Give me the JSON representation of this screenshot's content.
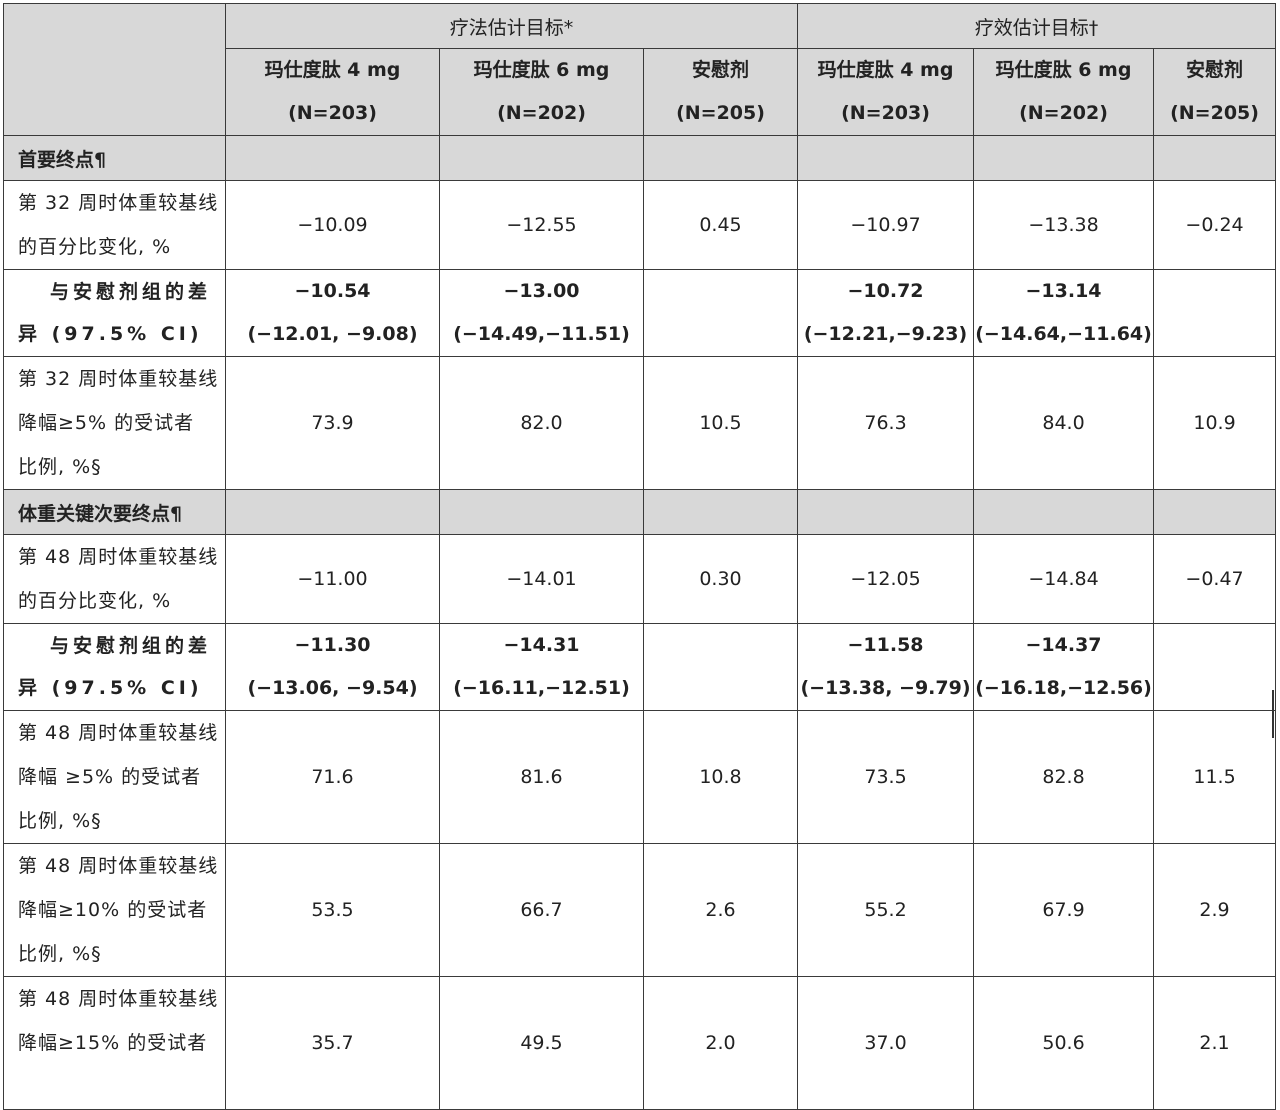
{
  "header": {
    "group1": "疗法估计目标*",
    "group2": "疗效估计目标†",
    "cols": [
      {
        "name": "玛仕度肽 4 mg",
        "n": "(N=203)"
      },
      {
        "name": "玛仕度肽 6 mg",
        "n": "(N=202)"
      },
      {
        "name": "安慰剂",
        "n": "(N=205)"
      },
      {
        "name": "玛仕度肽 4 mg",
        "n": "(N=203)"
      },
      {
        "name": "玛仕度肽 6 mg",
        "n": "(N=202)"
      },
      {
        "name": "安慰剂",
        "n": "(N=205)"
      }
    ]
  },
  "sections": [
    {
      "title": "首要终点¶",
      "rows": [
        {
          "label": [
            "第 32 周时体重较基线",
            "的百分比变化, %"
          ],
          "values": [
            "−10.09",
            "−12.55",
            "0.45",
            "−10.97",
            "−13.38",
            "−0.24"
          ]
        },
        {
          "label": [
            "与安慰剂组的差",
            "异 (97.5% CI)"
          ],
          "diff": true,
          "values": [
            "−10.54",
            "−13.00",
            "",
            "−10.72",
            "−13.14",
            ""
          ],
          "ci": [
            "(−12.01, −9.08)",
            "(−14.49,−11.51)",
            "",
            "(−12.21,−9.23)",
            "(−14.64,−11.64)",
            ""
          ]
        },
        {
          "label": [
            "第 32 周时体重较基线",
            "降幅≥5% 的受试者",
            "比例, %§"
          ],
          "values": [
            "73.9",
            "82.0",
            "10.5",
            "76.3",
            "84.0",
            "10.9"
          ]
        }
      ]
    },
    {
      "title": "体重关键次要终点¶",
      "rows": [
        {
          "label": [
            "第 48 周时体重较基线",
            "的百分比变化, %"
          ],
          "values": [
            "−11.00",
            "−14.01",
            "0.30",
            "−12.05",
            "−14.84",
            "−0.47"
          ]
        },
        {
          "label": [
            "与安慰剂组的差",
            "异 (97.5% CI)"
          ],
          "diff": true,
          "values": [
            "−11.30",
            "−14.31",
            "",
            "−11.58",
            "−14.37",
            ""
          ],
          "ci": [
            "(−13.06, −9.54)",
            "(−16.11,−12.51)",
            "",
            "(−13.38, −9.79)",
            "(−16.18,−12.56)",
            ""
          ]
        },
        {
          "label": [
            "第 48 周时体重较基线",
            "降幅 ≥5% 的受试者",
            "比例, %§"
          ],
          "values": [
            "71.6",
            "81.6",
            "10.8",
            "73.5",
            "82.8",
            "11.5"
          ]
        },
        {
          "label": [
            "第 48 周时体重较基线",
            "降幅≥10% 的受试者",
            "比例, %§"
          ],
          "values": [
            "53.5",
            "66.7",
            "2.6",
            "55.2",
            "67.9",
            "2.9"
          ]
        },
        {
          "label": [
            "第 48 周时体重较基线",
            "降幅≥15% 的受试者",
            ""
          ],
          "values": [
            "35.7",
            "49.5",
            "2.0",
            "37.0",
            "50.6",
            "2.1"
          ]
        }
      ]
    }
  ]
}
